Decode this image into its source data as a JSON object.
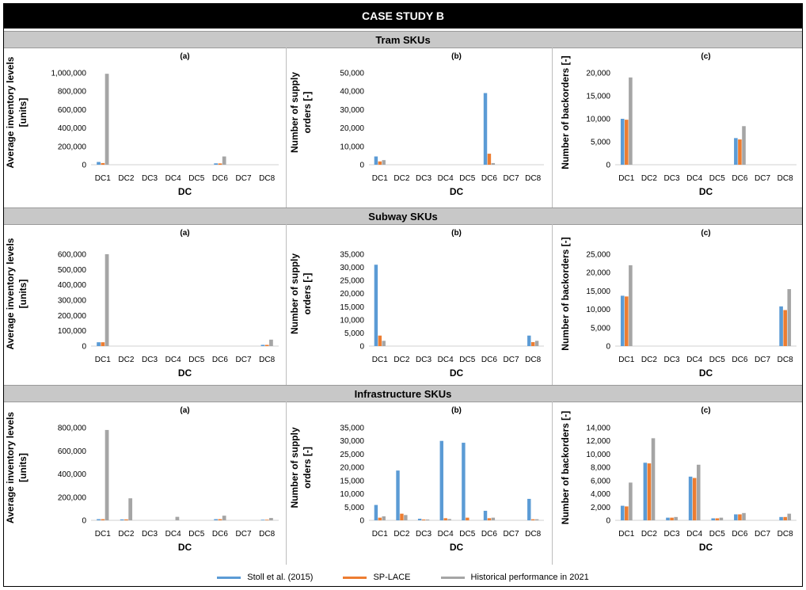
{
  "title": "CASE STUDY B",
  "sections": [
    "Tram SKUs",
    "Subway SKUs",
    "Infrastructure SKUs"
  ],
  "legend": [
    {
      "name": "Stoll et al. (2015)",
      "color": "#5b9bd5"
    },
    {
      "name": "SP-LACE",
      "color": "#ed7d31"
    },
    {
      "name": "Historical performance in 2021",
      "color": "#a5a5a5"
    }
  ],
  "chart_data": [
    {
      "section": "Tram SKUs",
      "type": "bar",
      "title": "(a)",
      "xlabel": "DC",
      "ylabel": "Average inventory levels [units]",
      "categories": [
        "DC1",
        "DC2",
        "DC3",
        "DC4",
        "DC5",
        "DC6",
        "DC7",
        "DC8"
      ],
      "ylim": [
        0,
        1000000
      ],
      "yticks": [
        0,
        200000,
        400000,
        600000,
        800000,
        1000000
      ],
      "yticklabels": [
        "0",
        "200,000",
        "400,000",
        "600,000",
        "800,000",
        "1,000,000"
      ],
      "series": [
        {
          "name": "Stoll et al. (2015)",
          "values": [
            30000,
            0,
            0,
            0,
            0,
            15000,
            0,
            0
          ]
        },
        {
          "name": "SP-LACE",
          "values": [
            18000,
            0,
            0,
            0,
            0,
            14000,
            0,
            0
          ]
        },
        {
          "name": "Historical performance in 2021",
          "values": [
            990000,
            0,
            0,
            0,
            0,
            90000,
            0,
            0
          ]
        }
      ]
    },
    {
      "section": "Tram SKUs",
      "type": "bar",
      "title": "(b)",
      "xlabel": "DC",
      "ylabel": "Number of supply orders [-]",
      "categories": [
        "DC1",
        "DC2",
        "DC3",
        "DC4",
        "DC5",
        "DC6",
        "DC7",
        "DC8"
      ],
      "ylim": [
        0,
        50000
      ],
      "yticks": [
        0,
        10000,
        20000,
        30000,
        40000,
        50000
      ],
      "yticklabels": [
        "0",
        "10,000",
        "20,000",
        "30,000",
        "40,000",
        "50,000"
      ],
      "series": [
        {
          "name": "Stoll et al. (2015)",
          "values": [
            4500,
            0,
            0,
            0,
            0,
            39000,
            0,
            0
          ]
        },
        {
          "name": "SP-LACE",
          "values": [
            1800,
            0,
            0,
            0,
            0,
            6000,
            0,
            0
          ]
        },
        {
          "name": "Historical performance in 2021",
          "values": [
            2500,
            0,
            0,
            0,
            0,
            900,
            0,
            0
          ]
        }
      ]
    },
    {
      "section": "Tram SKUs",
      "type": "bar",
      "title": "(c)",
      "xlabel": "DC",
      "ylabel": "Number of backorders [-]",
      "categories": [
        "DC1",
        "DC2",
        "DC3",
        "DC4",
        "DC5",
        "DC6",
        "DC7",
        "DC8"
      ],
      "ylim": [
        0,
        20000
      ],
      "yticks": [
        0,
        5000,
        10000,
        15000,
        20000
      ],
      "yticklabels": [
        "0",
        "5,000",
        "10,000",
        "15,000",
        "20,000"
      ],
      "series": [
        {
          "name": "Stoll et al. (2015)",
          "values": [
            10000,
            0,
            0,
            0,
            0,
            5800,
            0,
            0
          ]
        },
        {
          "name": "SP-LACE",
          "values": [
            9800,
            0,
            0,
            0,
            0,
            5500,
            0,
            0
          ]
        },
        {
          "name": "Historical performance in 2021",
          "values": [
            19000,
            0,
            0,
            0,
            0,
            8400,
            0,
            0
          ]
        }
      ]
    },
    {
      "section": "Subway SKUs",
      "type": "bar",
      "title": "(a)",
      "xlabel": "DC",
      "ylabel": "Average inventory levels [units]",
      "categories": [
        "DC1",
        "DC2",
        "DC3",
        "DC4",
        "DC5",
        "DC6",
        "DC7",
        "DC8"
      ],
      "ylim": [
        0,
        600000
      ],
      "yticks": [
        0,
        100000,
        200000,
        300000,
        400000,
        500000,
        600000
      ],
      "yticklabels": [
        "0",
        "100,000",
        "200,000",
        "300,000",
        "400,000",
        "500,000",
        "600,000"
      ],
      "series": [
        {
          "name": "Stoll et al. (2015)",
          "values": [
            25000,
            0,
            0,
            0,
            0,
            0,
            0,
            8000
          ]
        },
        {
          "name": "SP-LACE",
          "values": [
            25000,
            0,
            0,
            0,
            0,
            0,
            0,
            8000
          ]
        },
        {
          "name": "Historical performance in 2021",
          "values": [
            600000,
            0,
            0,
            0,
            0,
            0,
            0,
            42000
          ]
        }
      ]
    },
    {
      "section": "Subway SKUs",
      "type": "bar",
      "title": "(b)",
      "xlabel": "DC",
      "ylabel": "Number of supply orders [-]",
      "categories": [
        "DC1",
        "DC2",
        "DC3",
        "DC4",
        "DC5",
        "DC6",
        "DC7",
        "DC8"
      ],
      "ylim": [
        0,
        35000
      ],
      "yticks": [
        0,
        5000,
        10000,
        15000,
        20000,
        25000,
        30000,
        35000
      ],
      "yticklabels": [
        "0",
        "5,000",
        "10,000",
        "15,000",
        "20,000",
        "25,000",
        "30,000",
        "35,000"
      ],
      "series": [
        {
          "name": "Stoll et al. (2015)",
          "values": [
            31000,
            0,
            0,
            0,
            0,
            0,
            0,
            4000
          ]
        },
        {
          "name": "SP-LACE",
          "values": [
            4000,
            0,
            0,
            0,
            0,
            0,
            0,
            1500
          ]
        },
        {
          "name": "Historical performance in 2021",
          "values": [
            2000,
            0,
            0,
            0,
            0,
            0,
            0,
            2000
          ]
        }
      ]
    },
    {
      "section": "Subway SKUs",
      "type": "bar",
      "title": "(c)",
      "xlabel": "DC",
      "ylabel": "Number of backorders [-]",
      "categories": [
        "DC1",
        "DC2",
        "DC3",
        "DC4",
        "DC5",
        "DC6",
        "DC7",
        "DC8"
      ],
      "ylim": [
        0,
        25000
      ],
      "yticks": [
        0,
        5000,
        10000,
        15000,
        20000,
        25000
      ],
      "yticklabels": [
        "0",
        "5,000",
        "10,000",
        "15,000",
        "20,000",
        "25,000"
      ],
      "series": [
        {
          "name": "Stoll et al. (2015)",
          "values": [
            13700,
            0,
            0,
            0,
            0,
            0,
            0,
            10800
          ]
        },
        {
          "name": "SP-LACE",
          "values": [
            13500,
            0,
            0,
            0,
            0,
            0,
            0,
            9800
          ]
        },
        {
          "name": "Historical performance in 2021",
          "values": [
            22000,
            0,
            0,
            0,
            0,
            0,
            0,
            15500
          ]
        }
      ]
    },
    {
      "section": "Infrastructure SKUs",
      "type": "bar",
      "title": "(a)",
      "xlabel": "DC",
      "ylabel": "Average inventory levels [units]",
      "categories": [
        "DC1",
        "DC2",
        "DC3",
        "DC4",
        "DC5",
        "DC6",
        "DC7",
        "DC8"
      ],
      "ylim": [
        0,
        800000
      ],
      "yticks": [
        0,
        200000,
        400000,
        600000,
        800000
      ],
      "yticklabels": [
        "0",
        "200,000",
        "400,000",
        "600,000",
        "800,000"
      ],
      "series": [
        {
          "name": "Stoll et al. (2015)",
          "values": [
            10000,
            8000,
            0,
            0,
            0,
            10000,
            0,
            5000
          ]
        },
        {
          "name": "SP-LACE",
          "values": [
            10000,
            8000,
            0,
            0,
            0,
            10000,
            0,
            5000
          ]
        },
        {
          "name": "Historical performance in 2021",
          "values": [
            780000,
            190000,
            0,
            30000,
            0,
            40000,
            0,
            20000
          ]
        }
      ]
    },
    {
      "section": "Infrastructure SKUs",
      "type": "bar",
      "title": "(b)",
      "xlabel": "DC",
      "ylabel": "Number of supply orders [-]",
      "categories": [
        "DC1",
        "DC2",
        "DC3",
        "DC4",
        "DC5",
        "DC6",
        "DC7",
        "DC8"
      ],
      "ylim": [
        0,
        35000
      ],
      "yticks": [
        0,
        5000,
        10000,
        15000,
        20000,
        25000,
        30000,
        35000
      ],
      "yticklabels": [
        "0",
        "5,000",
        "10,000",
        "15,000",
        "20,000",
        "25,000",
        "30,000",
        "35,000"
      ],
      "series": [
        {
          "name": "Stoll et al. (2015)",
          "values": [
            5800,
            18800,
            600,
            30000,
            29300,
            3600,
            0,
            8100
          ]
        },
        {
          "name": "SP-LACE",
          "values": [
            1000,
            2500,
            300,
            800,
            1000,
            800,
            0,
            400
          ]
        },
        {
          "name": "Historical performance in 2021",
          "values": [
            1500,
            2000,
            300,
            500,
            0,
            1000,
            0,
            400
          ]
        }
      ]
    },
    {
      "section": "Infrastructure SKUs",
      "type": "bar",
      "title": "(c)",
      "xlabel": "DC",
      "ylabel": "Number of backorders [-]",
      "categories": [
        "DC1",
        "DC2",
        "DC3",
        "DC4",
        "DC5",
        "DC6",
        "DC7",
        "DC8"
      ],
      "ylim": [
        0,
        14000
      ],
      "yticks": [
        0,
        2000,
        4000,
        6000,
        8000,
        10000,
        12000,
        14000
      ],
      "yticklabels": [
        "0",
        "2,000",
        "4,000",
        "6,000",
        "8,000",
        "10,000",
        "12,000",
        "14,000"
      ],
      "series": [
        {
          "name": "Stoll et al. (2015)",
          "values": [
            2200,
            8700,
            400,
            6600,
            300,
            900,
            0,
            500
          ]
        },
        {
          "name": "SP-LACE",
          "values": [
            2100,
            8600,
            400,
            6400,
            300,
            900,
            0,
            500
          ]
        },
        {
          "name": "Historical performance in 2021",
          "values": [
            5700,
            12400,
            500,
            8400,
            400,
            1100,
            0,
            1000
          ]
        }
      ]
    }
  ]
}
